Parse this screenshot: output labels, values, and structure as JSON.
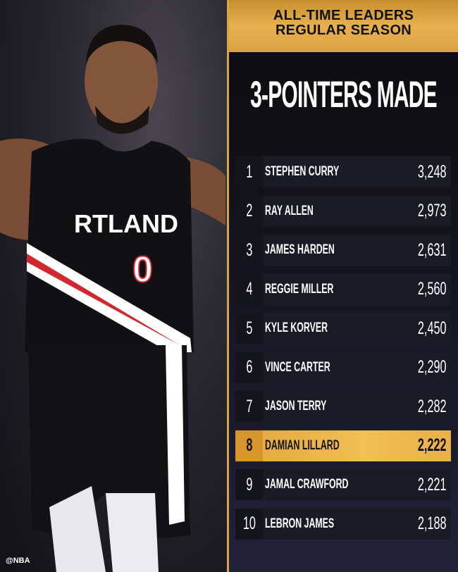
{
  "watermark": "@NBA",
  "header": {
    "line1": "ALL-TIME LEADERS",
    "line2": "REGULAR SEASON"
  },
  "title": "3-POINTERS MADE",
  "jersey": {
    "text": "RTLAND",
    "number": "0"
  },
  "colors": {
    "gold": "#e7b04e",
    "highlight": "#f1bf55",
    "row": "#1a1c25"
  },
  "leaders": [
    {
      "rank": "1",
      "name": "STEPHEN CURRY",
      "value": "3,248"
    },
    {
      "rank": "2",
      "name": "RAY ALLEN",
      "value": "2,973"
    },
    {
      "rank": "3",
      "name": "JAMES HARDEN",
      "value": "2,631"
    },
    {
      "rank": "4",
      "name": "REGGIE MILLER",
      "value": "2,560"
    },
    {
      "rank": "5",
      "name": "KYLE KORVER",
      "value": "2,450"
    },
    {
      "rank": "6",
      "name": "VINCE CARTER",
      "value": "2,290"
    },
    {
      "rank": "7",
      "name": "JASON TERRY",
      "value": "2,282"
    },
    {
      "rank": "8",
      "name": "DAMIAN LILLARD",
      "value": "2,222",
      "highlighted": true
    },
    {
      "rank": "9",
      "name": "JAMAL CRAWFORD",
      "value": "2,221"
    },
    {
      "rank": "10",
      "name": "LEBRON JAMES",
      "value": "2,188"
    }
  ]
}
